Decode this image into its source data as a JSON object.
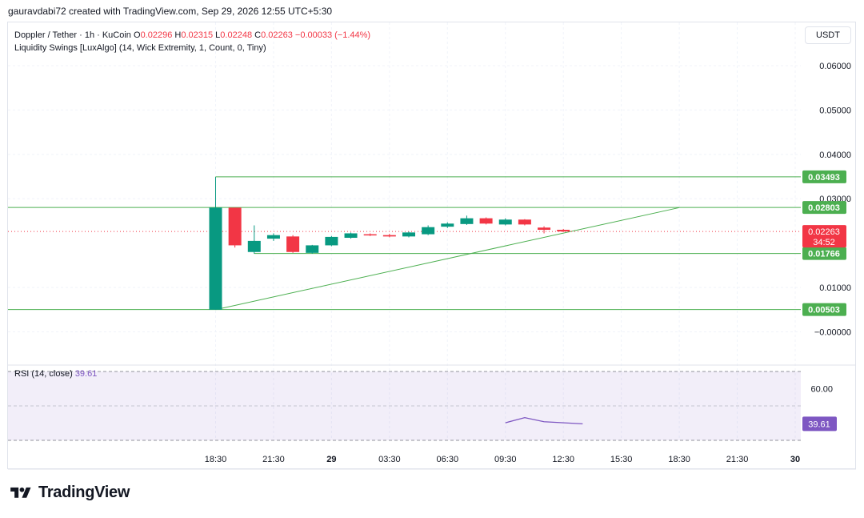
{
  "header": {
    "credit": "gauravdabi72 created with TradingView.com, Sep 29, 2026 12:55 UTC+5:30"
  },
  "legend": {
    "symbol": "Doppler / Tether · 1h · KuCoin",
    "open_label": "O",
    "open_value": "0.02296",
    "high_label": "H",
    "high_value": "0.02315",
    "low_label": "L",
    "low_value": "0.02248",
    "close_label": "C",
    "close_value": "0.02263",
    "change": "−0.00033 (−1.44%)",
    "indicator": "Liquidity Swings [LuxAlgo] (14, Wick Extremity, 1, Count, 0, Tiny)"
  },
  "currency_button": "USDT",
  "rsi_legend": {
    "label": "RSI (14, close)",
    "value": "39.61"
  },
  "brand": {
    "name": "TradingView"
  },
  "colors": {
    "up": "#089981",
    "down": "#f23645",
    "swing_line": "#4caf50",
    "rsi_line": "#7e57c2",
    "rsi_band": "#7e57c2"
  },
  "chart_data": {
    "type": "candlestick",
    "ylim": [
      -0.001,
      0.065
    ],
    "y_ticks": [
      {
        "value": 0.06,
        "label": "0.06000"
      },
      {
        "value": 0.05,
        "label": "0.05000"
      },
      {
        "value": 0.04,
        "label": "0.04000"
      },
      {
        "value": 0.03,
        "label": "0.03000"
      },
      {
        "value": 0.01,
        "label": "0.01000"
      },
      {
        "value": 0.0,
        "label": "−0.00000"
      }
    ],
    "x_ticks": [
      {
        "hour": 0,
        "label": "18:30",
        "bold": false
      },
      {
        "hour": 3,
        "label": "21:30",
        "bold": false
      },
      {
        "hour": 6,
        "label": "29",
        "bold": true
      },
      {
        "hour": 9,
        "label": "03:30",
        "bold": false
      },
      {
        "hour": 12,
        "label": "06:30",
        "bold": false
      },
      {
        "hour": 15,
        "label": "09:30",
        "bold": false
      },
      {
        "hour": 18,
        "label": "12:30",
        "bold": false
      },
      {
        "hour": 21,
        "label": "15:30",
        "bold": false
      },
      {
        "hour": 24,
        "label": "18:30",
        "bold": false
      },
      {
        "hour": 27,
        "label": "21:30",
        "bold": false
      },
      {
        "hour": 30,
        "label": "30",
        "bold": true
      }
    ],
    "candles": [
      {
        "t": 0,
        "o": 0.005,
        "h": 0.0349,
        "l": 0.005,
        "c": 0.028
      },
      {
        "t": 1,
        "o": 0.028,
        "h": 0.028,
        "l": 0.019,
        "c": 0.0195
      },
      {
        "t": 2,
        "o": 0.018,
        "h": 0.024,
        "l": 0.0176,
        "c": 0.0205
      },
      {
        "t": 3,
        "o": 0.021,
        "h": 0.0222,
        "l": 0.0205,
        "c": 0.0218
      },
      {
        "t": 4,
        "o": 0.0215,
        "h": 0.0218,
        "l": 0.0178,
        "c": 0.018
      },
      {
        "t": 5,
        "o": 0.0178,
        "h": 0.0196,
        "l": 0.0176,
        "c": 0.0195
      },
      {
        "t": 6,
        "o": 0.0195,
        "h": 0.0216,
        "l": 0.0193,
        "c": 0.0214
      },
      {
        "t": 7,
        "o": 0.0212,
        "h": 0.0224,
        "l": 0.021,
        "c": 0.0222
      },
      {
        "t": 8,
        "o": 0.022,
        "h": 0.0222,
        "l": 0.0216,
        "c": 0.0218
      },
      {
        "t": 9,
        "o": 0.0218,
        "h": 0.0221,
        "l": 0.0213,
        "c": 0.0215
      },
      {
        "t": 10,
        "o": 0.0215,
        "h": 0.0226,
        "l": 0.0213,
        "c": 0.0224
      },
      {
        "t": 11,
        "o": 0.022,
        "h": 0.024,
        "l": 0.0218,
        "c": 0.0236
      },
      {
        "t": 12,
        "o": 0.0237,
        "h": 0.0247,
        "l": 0.0234,
        "c": 0.0244
      },
      {
        "t": 13,
        "o": 0.0243,
        "h": 0.0262,
        "l": 0.0241,
        "c": 0.0256
      },
      {
        "t": 14,
        "o": 0.0256,
        "h": 0.0258,
        "l": 0.0242,
        "c": 0.0244
      },
      {
        "t": 15,
        "o": 0.0242,
        "h": 0.0256,
        "l": 0.024,
        "c": 0.0253
      },
      {
        "t": 16,
        "o": 0.0253,
        "h": 0.0254,
        "l": 0.024,
        "c": 0.0242
      },
      {
        "t": 17,
        "o": 0.0235,
        "h": 0.0238,
        "l": 0.0222,
        "c": 0.023
      },
      {
        "t": 18,
        "o": 0.023,
        "h": 0.0232,
        "l": 0.0225,
        "c": 0.02263
      }
    ],
    "swing_levels": [
      {
        "value": 0.03493,
        "label": "0.03493",
        "from_t": 0
      },
      {
        "value": 0.02803,
        "label": "0.02803",
        "from_t": -10
      },
      {
        "value": 0.01766,
        "label": "0.01766",
        "from_t": 2
      },
      {
        "value": 0.00503,
        "label": "0.00503",
        "from_t": -10
      }
    ],
    "trend_line": {
      "t1": 0,
      "v1": 0.005,
      "t2": 24,
      "v2": 0.028
    },
    "last_price": {
      "value": 0.02263,
      "label": "0.02263",
      "countdown": "34:52"
    },
    "rsi": {
      "ylim": [
        25,
        75
      ],
      "band": [
        30,
        70
      ],
      "ticks": [
        {
          "value": 60,
          "label": "60.00"
        }
      ],
      "points": [
        {
          "t": 15,
          "v": 40.2
        },
        {
          "t": 16,
          "v": 43.2
        },
        {
          "t": 17,
          "v": 40.8
        },
        {
          "t": 19,
          "v": 39.6
        }
      ],
      "last": {
        "value": 39.61,
        "label": "39.61"
      }
    }
  }
}
